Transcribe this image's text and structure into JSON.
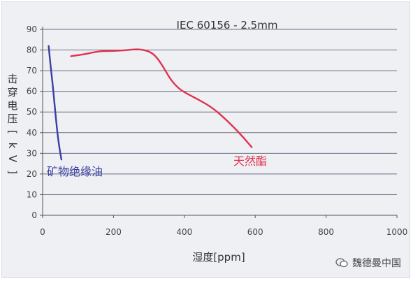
{
  "chart_data": {
    "type": "line",
    "title": "IEC 60156 - 2.5mm",
    "xlabel": "湿度[ppm]",
    "ylabel": "击穿电压[kV]",
    "xlim": [
      0,
      1000
    ],
    "ylim": [
      0,
      90
    ],
    "xticks": [
      0,
      200,
      400,
      600,
      800,
      1000
    ],
    "yticks": [
      0,
      10,
      20,
      30,
      40,
      50,
      60,
      70,
      80,
      90
    ],
    "grid": "horizontal",
    "series": [
      {
        "name": "矿物绝缘油",
        "color": "#3a3fa0",
        "x": [
          17,
          22,
          28,
          33,
          38,
          43,
          48,
          53
        ],
        "y": [
          82,
          73,
          64,
          55,
          46,
          38,
          32,
          27
        ]
      },
      {
        "name": "天然酯",
        "color": "#e0334e",
        "x": [
          80,
          120,
          160,
          200,
          240,
          270,
          300,
          320,
          340,
          360,
          380,
          400,
          440,
          480,
          520,
          560,
          590
        ],
        "y": [
          77,
          78,
          79.5,
          79.5,
          80,
          80.5,
          79.5,
          77,
          72,
          66,
          62,
          59.5,
          56,
          52,
          46,
          39,
          33
        ]
      }
    ],
    "annotations": [
      {
        "text": "矿物绝缘油",
        "series": 0
      },
      {
        "text": "天然酯",
        "series": 1
      }
    ]
  },
  "watermark": {
    "text": "魏德曼中国",
    "icon": "wechat-icon"
  }
}
